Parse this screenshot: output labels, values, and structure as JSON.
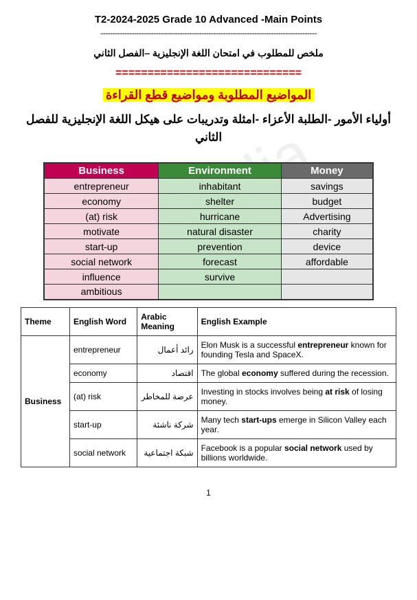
{
  "watermark": "Kamalia",
  "header": {
    "title": "T2-2024-2025 Grade 10 Advanced -Main Points",
    "dashline": "------------------------------------------------------------------------------------------",
    "subtitle_ar": "ملخص للمطلوب في امتحان اللغة الإنجليزية –الفصل الثاني",
    "eqline": "=============================",
    "highlight": "المواضيع المطلوبة ومواضيع قطع القراءة",
    "intro_ar": "أولياء الأمور -الطلبة الأعزاء -امثلة وتدريبات على هيكل اللغة الإنجليزية للفصل الثاني"
  },
  "vocab": {
    "headers": {
      "business": "Business",
      "environment": "Environment",
      "money": "Money"
    },
    "rows": [
      {
        "business": "entrepreneur",
        "environment": "inhabitant",
        "money": "savings"
      },
      {
        "business": "economy",
        "environment": "shelter",
        "money": "budget"
      },
      {
        "business": "(at) risk",
        "environment": "hurricane",
        "money": "Advertising"
      },
      {
        "business": "motivate",
        "environment": "natural disaster",
        "money": "charity"
      },
      {
        "business": "start-up",
        "environment": "prevention",
        "money": "device"
      },
      {
        "business": "social network",
        "environment": "forecast",
        "money": "affordable"
      },
      {
        "business": "influence",
        "environment": "survive",
        "money": ""
      },
      {
        "business": "ambitious",
        "environment": "",
        "money": ""
      }
    ]
  },
  "def": {
    "headers": {
      "theme": "Theme",
      "english_word": "English Word",
      "arabic_meaning": "Arabic Meaning",
      "english_example": "English Example"
    },
    "theme": "Business",
    "rows": [
      {
        "word": "entrepreneur",
        "arabic": "رائد أعمال",
        "example_pre": "Elon Musk is a successful ",
        "example_bold": "entrepreneur",
        "example_post": " known for founding Tesla and SpaceX."
      },
      {
        "word": "economy",
        "arabic": "اقتصاد",
        "example_pre": "The global ",
        "example_bold": "economy",
        "example_post": " suffered during the recession."
      },
      {
        "word": "(at) risk",
        "arabic": "عرضة للمخاطر",
        "example_pre": "Investing in stocks involves being ",
        "example_bold": "at risk",
        "example_post": " of losing money."
      },
      {
        "word": "start-up",
        "arabic": "شركة ناشئة",
        "example_pre": "Many tech ",
        "example_bold": "start-ups",
        "example_post": " emerge in Silicon Valley each year."
      },
      {
        "word": "social network",
        "arabic": "شبكة اجتماعية",
        "example_pre": "Facebook is a popular ",
        "example_bold": "social network",
        "example_post": " used by billions worldwide."
      }
    ]
  },
  "page_number": "1"
}
